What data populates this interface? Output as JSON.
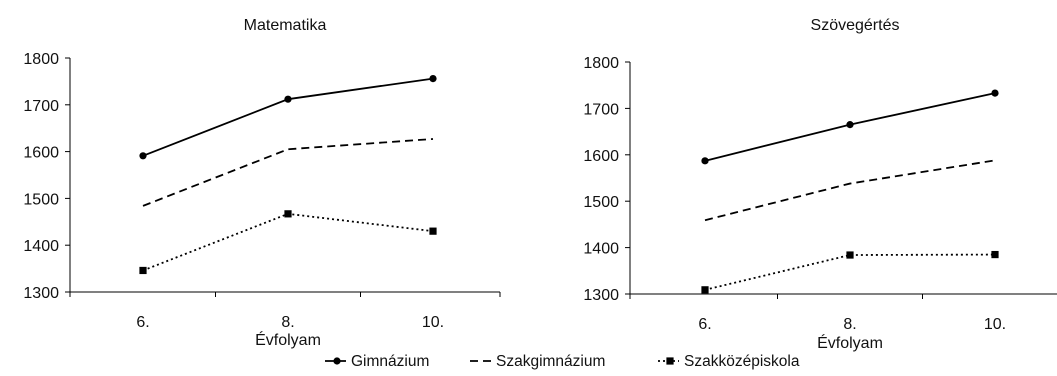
{
  "chart_data": [
    {
      "type": "line",
      "title": "Matematika",
      "xlabel": "Évfolyam",
      "ylabel": "",
      "categories": [
        "6.",
        "8.",
        "10."
      ],
      "ylim": [
        1300,
        1800
      ],
      "yticks": [
        1300,
        1400,
        1500,
        1600,
        1700,
        1800
      ],
      "grid": false,
      "series": [
        {
          "name": "Gimnázium",
          "values": [
            1591,
            1712,
            1756
          ]
        },
        {
          "name": "Szakgimnázium",
          "values": [
            1484,
            1605,
            1627
          ]
        },
        {
          "name": "Szakközépiskola",
          "values": [
            1346,
            1467,
            1430
          ]
        }
      ]
    },
    {
      "type": "line",
      "title": "Szövegértés",
      "xlabel": "Évfolyam",
      "ylabel": "",
      "categories": [
        "6.",
        "8.",
        "10."
      ],
      "ylim": [
        1300,
        1800
      ],
      "yticks": [
        1300,
        1400,
        1500,
        1600,
        1700,
        1800
      ],
      "grid": false,
      "series": [
        {
          "name": "Gimnázium",
          "values": [
            1587,
            1665,
            1733
          ]
        },
        {
          "name": "Szakgimnázium",
          "values": [
            1459,
            1538,
            1588
          ]
        },
        {
          "name": "Szakközépiskola",
          "values": [
            1309,
            1384,
            1385
          ]
        }
      ]
    }
  ],
  "series_styles": [
    {
      "name": "Gimnázium",
      "color": "#000000",
      "line": "solid",
      "marker": "circle"
    },
    {
      "name": "Szakgimnázium",
      "color": "#000000",
      "line": "dashed",
      "marker": "none"
    },
    {
      "name": "Szakközépiskola",
      "color": "#000000",
      "line": "dotted",
      "marker": "square"
    }
  ],
  "legend": {
    "placement": "bottom-center",
    "entries": [
      "Gimnázium",
      "Szakgimnázium",
      "Szakközépiskola"
    ]
  }
}
